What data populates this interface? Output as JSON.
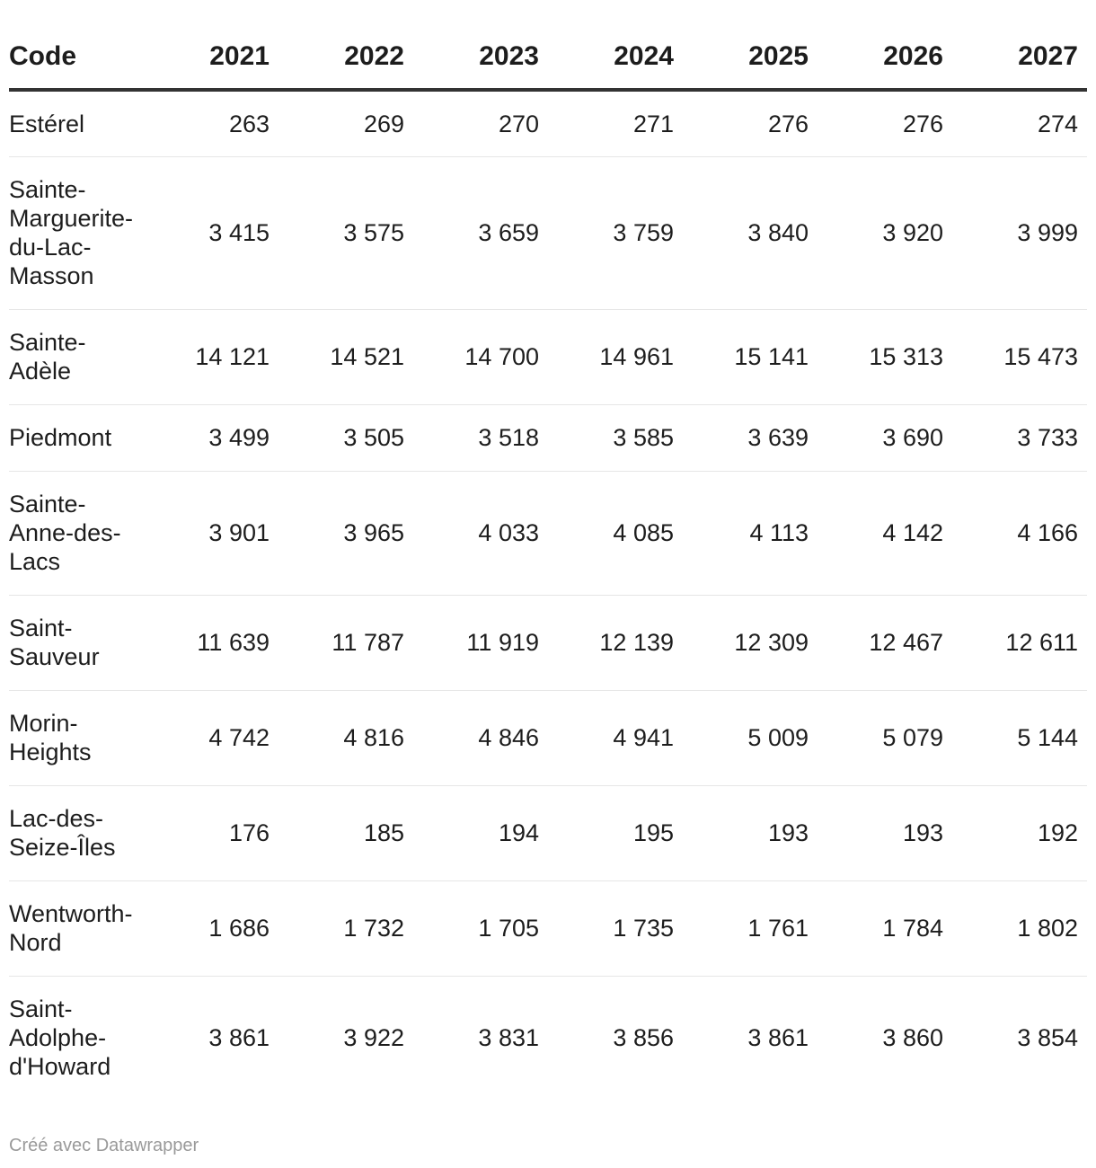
{
  "chart_data": {
    "type": "table",
    "columns": [
      "Code",
      "2021",
      "2022",
      "2023",
      "2024",
      "2025",
      "2026",
      "2027"
    ],
    "rows": [
      {
        "name": "Estérel",
        "values": [
          "263",
          "269",
          "270",
          "271",
          "276",
          "276",
          "274"
        ]
      },
      {
        "name": "Sainte-Marguerite-du-Lac-Masson",
        "values": [
          "3 415",
          "3 575",
          "3 659",
          "3 759",
          "3 840",
          "3 920",
          "3 999"
        ]
      },
      {
        "name": "Sainte-Adèle",
        "values": [
          "14 121",
          "14 521",
          "14 700",
          "14 961",
          "15 141",
          "15 313",
          "15 473"
        ]
      },
      {
        "name": "Piedmont",
        "values": [
          "3 499",
          "3 505",
          "3 518",
          "3 585",
          "3 639",
          "3 690",
          "3 733"
        ]
      },
      {
        "name": "Sainte-Anne-des-Lacs",
        "values": [
          "3 901",
          "3 965",
          "4 033",
          "4 085",
          "4 113",
          "4 142",
          "4 166"
        ]
      },
      {
        "name": "Saint-Sauveur",
        "values": [
          "11 639",
          "11 787",
          "11 919",
          "12 139",
          "12 309",
          "12 467",
          "12 611"
        ]
      },
      {
        "name": "Morin-Heights",
        "values": [
          "4 742",
          "4 816",
          "4 846",
          "4 941",
          "5 009",
          "5 079",
          "5 144"
        ]
      },
      {
        "name": "Lac-des-Seize-Îles",
        "values": [
          "176",
          "185",
          "194",
          "195",
          "193",
          "193",
          "192"
        ]
      },
      {
        "name": "Wentworth-Nord",
        "values": [
          "1 686",
          "1 732",
          "1 705",
          "1 735",
          "1 761",
          "1 784",
          "1 802"
        ]
      },
      {
        "name": "Saint-Adolphe-d'Howard",
        "values": [
          "3 861",
          "3 922",
          "3 831",
          "3 856",
          "3 861",
          "3 860",
          "3 854"
        ]
      }
    ]
  },
  "footer": "Créé avec Datawrapper"
}
